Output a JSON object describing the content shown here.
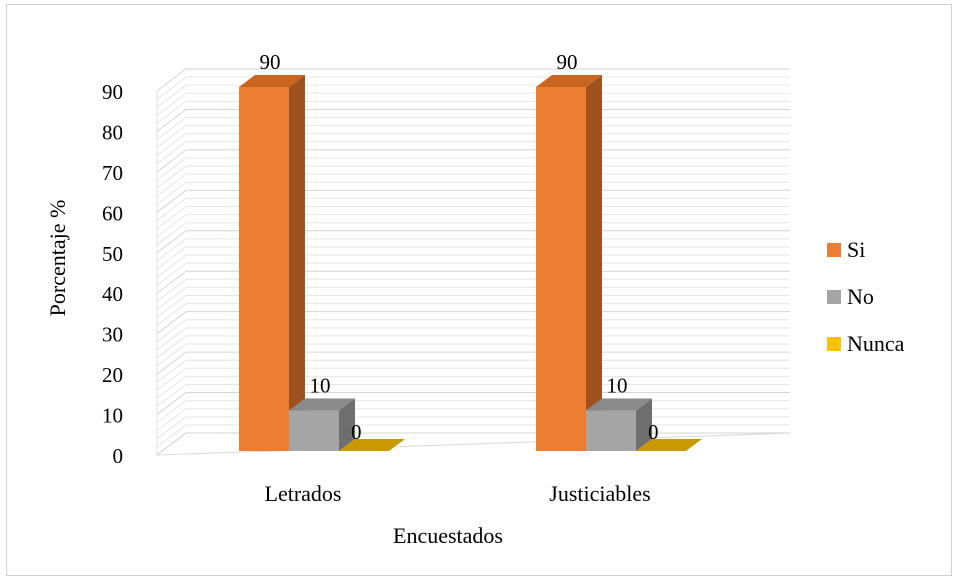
{
  "chart_data": {
    "type": "bar",
    "style": "3d-column",
    "categories": [
      "Letrados",
      "Justiciables"
    ],
    "series": [
      {
        "name": "Si",
        "values": [
          90,
          90
        ],
        "color": "#ED7D31",
        "side_color": "#A0521E",
        "top_color": "#C9651F"
      },
      {
        "name": "No",
        "values": [
          10,
          10
        ],
        "color": "#A5A5A5",
        "side_color": "#6E6E6E",
        "top_color": "#8A8A8A"
      },
      {
        "name": "Nunca",
        "values": [
          0,
          0
        ],
        "color": "#FFC000",
        "side_color": "#B88A00",
        "top_color": "#C99A00"
      }
    ],
    "xlabel": "Encuestados",
    "ylabel": "Porcentaje %",
    "ylim": [
      0,
      90
    ],
    "yticks": [
      0,
      10,
      20,
      30,
      40,
      50,
      60,
      70,
      80,
      90
    ],
    "grid": true,
    "legend": "right"
  }
}
